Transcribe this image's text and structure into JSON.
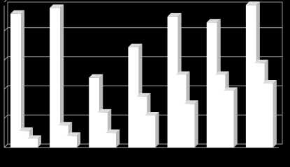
{
  "chart_data": {
    "type": "bar",
    "categories": [
      null,
      null,
      null,
      null,
      null,
      null,
      null
    ],
    "series": [
      {
        "color": "#ffffff",
        "values": [
          4.6,
          4.8,
          2.4,
          3.45,
          4.5,
          4.3,
          4.9
        ]
      },
      {
        "color": "#ffffff",
        "values": [
          0.57,
          0.76,
          1.2,
          1.75,
          2.5,
          2.5,
          2.9
        ]
      },
      {
        "color": "#ffffff",
        "values": [
          0.3,
          0.4,
          0.5,
          1.1,
          1.5,
          1.95,
          2.2
        ]
      }
    ],
    "ylim": [
      0,
      5
    ],
    "yticks": [
      0,
      1,
      2,
      3,
      4,
      5
    ],
    "grid": true
  }
}
